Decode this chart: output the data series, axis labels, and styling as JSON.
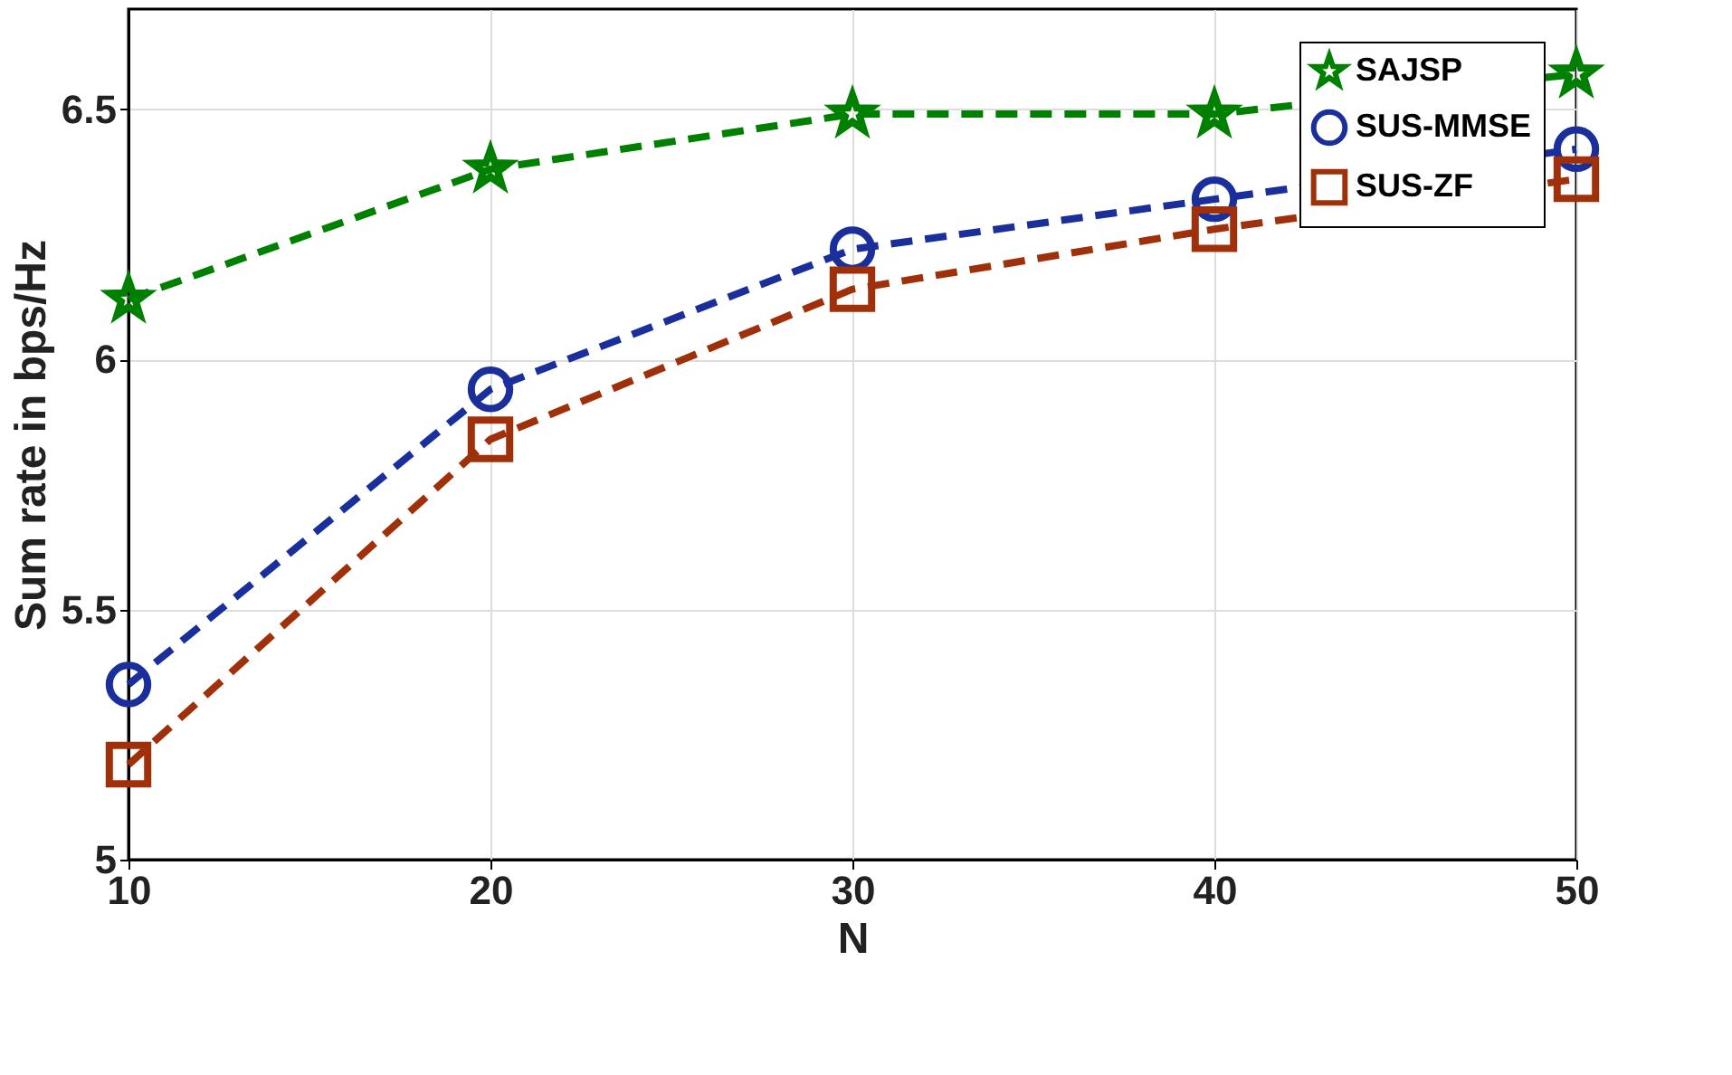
{
  "chart_data": {
    "type": "line",
    "xlabel": "N",
    "ylabel": "Sum rate in bps/Hz",
    "x": [
      10,
      20,
      30,
      40,
      50
    ],
    "series": [
      {
        "name": "SAJSP",
        "color": "#008000",
        "marker": "star",
        "values": [
          6.12,
          6.38,
          6.49,
          6.49,
          6.57
        ]
      },
      {
        "name": "SUS-MMSE",
        "color": "#1a2f9c",
        "marker": "circle",
        "values": [
          5.35,
          5.94,
          6.22,
          6.32,
          6.42
        ]
      },
      {
        "name": "SUS-ZF",
        "color": "#a0300a",
        "marker": "square",
        "values": [
          5.19,
          5.84,
          6.14,
          6.26,
          6.36
        ]
      }
    ],
    "xlim": [
      10,
      50
    ],
    "xticks": [
      10,
      20,
      30,
      40,
      50
    ],
    "ylim": [
      5,
      6.7
    ],
    "yticks": [
      {
        "value": 5,
        "label": "5"
      },
      5.5,
      {
        "value": 6,
        "label": "6"
      },
      6.5
    ],
    "grid": true,
    "legend": "top right",
    "line_style": "dashed"
  }
}
